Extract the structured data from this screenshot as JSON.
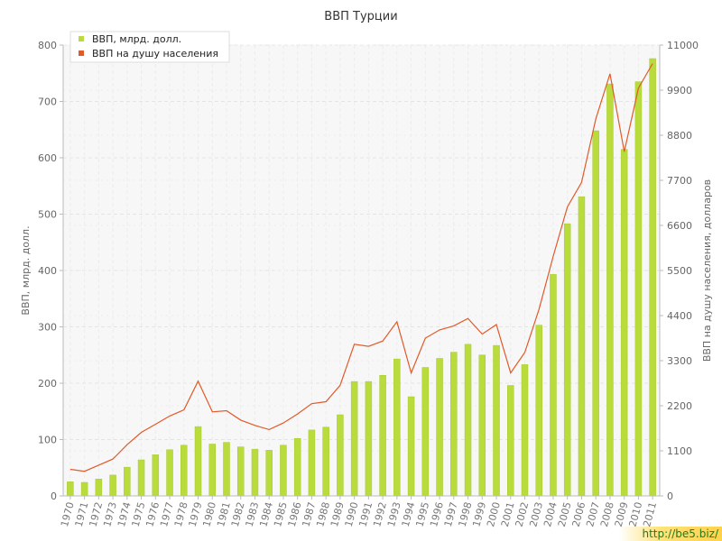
{
  "colors": {
    "bar": "#b9dc3c",
    "bar_edge": "#a6c934",
    "line": "#e05a2a",
    "grid": "#e4e4e4",
    "plot_bg": "#f7f7f7",
    "axis": "#bbbbbb"
  },
  "watermark": "http://be5.biz/",
  "chart_data": {
    "type": "bar",
    "title": "ВВП Турции",
    "ylabel": "ВВП, млрд. долл.",
    "y2label": "ВВП на душу населения, долларов",
    "xlabel": "",
    "ylim": [
      0,
      800
    ],
    "y2lim": [
      0,
      11000
    ],
    "yticks": [
      0,
      100,
      200,
      300,
      400,
      500,
      600,
      700,
      800
    ],
    "y2ticks": [
      0,
      1100,
      2200,
      3300,
      4400,
      5500,
      6600,
      7700,
      8800,
      9900,
      11000
    ],
    "grid": true,
    "legend_position": "top-left",
    "categories": [
      "1970",
      "1971",
      "1972",
      "1973",
      "1974",
      "1975",
      "1976",
      "1977",
      "1978",
      "1979",
      "1980",
      "1981",
      "1982",
      "1983",
      "1984",
      "1985",
      "1986",
      "1987",
      "1988",
      "1989",
      "1990",
      "1991",
      "1992",
      "1993",
      "1994",
      "1995",
      "1996",
      "1997",
      "1998",
      "1999",
      "2000",
      "2001",
      "2002",
      "2003",
      "2004",
      "2005",
      "2006",
      "2007",
      "2008",
      "2009",
      "2010",
      "2011"
    ],
    "series": [
      {
        "name": "ВВП, млрд. долл.",
        "type": "bar",
        "axis": "left",
        "values": [
          25,
          24,
          30,
          37,
          51,
          64,
          73,
          82,
          90,
          123,
          92,
          95,
          87,
          83,
          81,
          90,
          102,
          117,
          122,
          144,
          203,
          203,
          214,
          243,
          176,
          228,
          244,
          255,
          269,
          250,
          267,
          196,
          233,
          303,
          393,
          483,
          531,
          648,
          731,
          615,
          735,
          776
        ]
      },
      {
        "name": "ВВП на душу населения",
        "type": "line",
        "axis": "right",
        "values": [
          650,
          600,
          750,
          900,
          1250,
          1550,
          1750,
          1950,
          2100,
          2800,
          2050,
          2080,
          1850,
          1720,
          1620,
          1780,
          2000,
          2250,
          2300,
          2700,
          3700,
          3650,
          3780,
          4250,
          3000,
          3850,
          4050,
          4150,
          4330,
          3950,
          4180,
          3000,
          3500,
          4550,
          5850,
          7050,
          7650,
          9200,
          10300,
          8400,
          9950,
          10550
        ]
      }
    ]
  }
}
